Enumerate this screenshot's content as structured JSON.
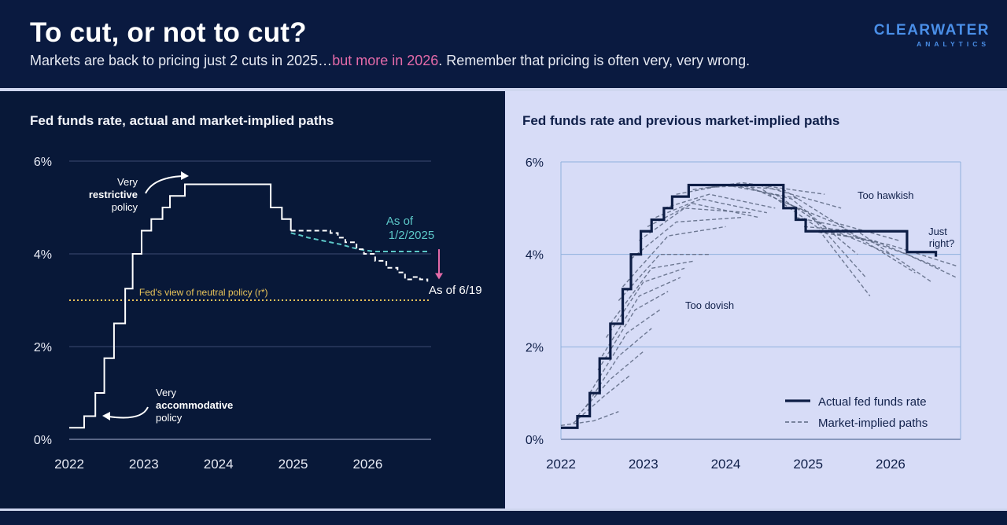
{
  "header": {
    "title": "To cut, or not to cut?",
    "subtitle_pre": "Markets are back to pricing just 2 cuts in 2025…",
    "subtitle_hl": "but more in 2026",
    "subtitle_post": ". Remember that pricing is often very, very wrong.",
    "logo_main": "CLEARWATER",
    "logo_sub": "ANALYTICS"
  },
  "colors": {
    "background": "#0a1a40",
    "highlight": "#e36aa8",
    "logo": "#4a8fe8",
    "left_panel": "#081838",
    "right_panel": "#d7dcf7",
    "actual_left": "#ffffff",
    "path_jan": "#5cc8c8",
    "path_jun": "#ffffff",
    "neutral": "#e8c35a",
    "arrow": "#e36aa8",
    "actual_right": "#0d1d45",
    "implied_right": "#5a6680"
  },
  "chart_data": [
    {
      "type": "line",
      "title": "Fed funds rate, actual and market-implied paths",
      "x_ticks": [
        "2022",
        "2023",
        "2024",
        "2025",
        "2026"
      ],
      "y_ticks": [
        "0%",
        "2%",
        "4%",
        "6%"
      ],
      "xlim": [
        2022,
        2026.85
      ],
      "ylim": [
        0,
        6
      ],
      "grid": true,
      "series": [
        {
          "name": "",
          "style": "step",
          "points": [
            [
              2022.0,
              0.25
            ],
            [
              2022.2,
              0.5
            ],
            [
              2022.35,
              1.0
            ],
            [
              2022.47,
              1.75
            ],
            [
              2022.6,
              2.5
            ],
            [
              2022.75,
              3.25
            ],
            [
              2022.85,
              4.0
            ],
            [
              2022.97,
              4.5
            ],
            [
              2023.1,
              4.75
            ],
            [
              2023.25,
              5.0
            ],
            [
              2023.35,
              5.25
            ],
            [
              2023.55,
              5.5
            ],
            [
              2024.7,
              5.0
            ],
            [
              2024.85,
              4.75
            ],
            [
              2024.97,
              4.5
            ]
          ]
        },
        {
          "name": "As of 1/2/2025",
          "style": "dashed",
          "points": [
            [
              2024.97,
              4.45
            ],
            [
              2025.1,
              4.4
            ],
            [
              2025.2,
              4.35
            ],
            [
              2025.35,
              4.3
            ],
            [
              2025.5,
              4.25
            ],
            [
              2025.65,
              4.2
            ],
            [
              2025.8,
              4.13
            ],
            [
              2025.95,
              4.08
            ],
            [
              2026.1,
              4.05
            ],
            [
              2026.3,
              4.05
            ],
            [
              2026.5,
              4.05
            ],
            [
              2026.8,
              4.05
            ]
          ]
        },
        {
          "name": "As of 6/19",
          "style": "dashed",
          "points": [
            [
              2024.97,
              4.5
            ],
            [
              2025.1,
              4.5
            ],
            [
              2025.3,
              4.5
            ],
            [
              2025.45,
              4.5
            ],
            [
              2025.5,
              4.45
            ],
            [
              2025.6,
              4.35
            ],
            [
              2025.7,
              4.25
            ],
            [
              2025.85,
              4.1
            ],
            [
              2025.95,
              4.0
            ],
            [
              2026.1,
              3.85
            ],
            [
              2026.25,
              3.7
            ],
            [
              2026.4,
              3.6
            ],
            [
              2026.5,
              3.45
            ],
            [
              2026.6,
              3.5
            ],
            [
              2026.7,
              3.45
            ],
            [
              2026.8,
              3.4
            ]
          ]
        },
        {
          "name": "Fed's view of neutral policy (r*)",
          "style": "dotted",
          "points": [
            [
              2022.0,
              3.0
            ],
            [
              2026.85,
              3.0
            ]
          ]
        }
      ],
      "annotations": {
        "restrictive": [
          "Very",
          "restrictive",
          "policy"
        ],
        "accommodative": [
          "Very",
          "accommodative",
          "policy"
        ],
        "as_of_jan": [
          "As of",
          "1/2/2025"
        ],
        "as_of_jun": "As of 6/19",
        "neutral": "Fed's view of neutral policy (r*)"
      }
    },
    {
      "type": "line",
      "title": "Fed funds rate and previous market-implied paths",
      "x_ticks": [
        "2022",
        "2023",
        "2024",
        "2025",
        "2026"
      ],
      "y_ticks": [
        "0%",
        "2%",
        "4%",
        "6%"
      ],
      "xlim": [
        2022,
        2026.85
      ],
      "ylim": [
        0,
        6
      ],
      "grid": true,
      "legend": {
        "position": "bottom-right",
        "items": [
          "Actual fed funds rate",
          "Market-implied paths"
        ]
      },
      "actual": [
        [
          2022.0,
          0.25
        ],
        [
          2022.2,
          0.5
        ],
        [
          2022.35,
          1.0
        ],
        [
          2022.47,
          1.75
        ],
        [
          2022.6,
          2.5
        ],
        [
          2022.75,
          3.25
        ],
        [
          2022.85,
          4.0
        ],
        [
          2022.97,
          4.5
        ],
        [
          2023.1,
          4.75
        ],
        [
          2023.25,
          5.0
        ],
        [
          2023.35,
          5.25
        ],
        [
          2023.55,
          5.5
        ],
        [
          2024.7,
          5.0
        ],
        [
          2024.85,
          4.75
        ],
        [
          2024.97,
          4.5
        ],
        [
          2025.5,
          4.5
        ],
        [
          2026.2,
          4.05
        ],
        [
          2026.55,
          3.95
        ]
      ],
      "implied_paths": [
        [
          [
            2022.0,
            0.3
          ],
          [
            2022.4,
            0.4
          ],
          [
            2022.7,
            0.6
          ]
        ],
        [
          [
            2022.15,
            0.35
          ],
          [
            2022.5,
            0.9
          ],
          [
            2022.85,
            1.4
          ]
        ],
        [
          [
            2022.2,
            0.5
          ],
          [
            2022.6,
            1.3
          ],
          [
            2023.0,
            1.9
          ]
        ],
        [
          [
            2022.3,
            0.7
          ],
          [
            2022.7,
            1.8
          ],
          [
            2023.1,
            2.4
          ]
        ],
        [
          [
            2022.35,
            1.0
          ],
          [
            2022.8,
            2.3
          ],
          [
            2023.2,
            2.8
          ]
        ],
        [
          [
            2022.45,
            1.5
          ],
          [
            2022.9,
            2.8
          ],
          [
            2023.3,
            3.2
          ]
        ],
        [
          [
            2022.5,
            1.8
          ],
          [
            2022.95,
            3.1
          ],
          [
            2023.45,
            3.5
          ]
        ],
        [
          [
            2022.55,
            2.2
          ],
          [
            2023.0,
            3.4
          ],
          [
            2023.5,
            3.7
          ]
        ],
        [
          [
            2022.6,
            2.5
          ],
          [
            2023.1,
            3.7
          ],
          [
            2023.6,
            3.85
          ]
        ],
        [
          [
            2022.7,
            3.0
          ],
          [
            2023.2,
            4.0
          ],
          [
            2023.8,
            4.0
          ]
        ],
        [
          [
            2022.75,
            3.3
          ],
          [
            2023.3,
            4.4
          ],
          [
            2024.0,
            4.6
          ]
        ],
        [
          [
            2022.85,
            3.9
          ],
          [
            2023.4,
            4.7
          ],
          [
            2024.2,
            4.8
          ]
        ],
        [
          [
            2022.95,
            4.3
          ],
          [
            2023.5,
            5.0
          ],
          [
            2024.3,
            4.9
          ]
        ],
        [
          [
            2023.05,
            4.6
          ],
          [
            2023.6,
            5.1
          ],
          [
            2024.4,
            4.8
          ]
        ],
        [
          [
            2023.15,
            4.8
          ],
          [
            2023.7,
            5.2
          ],
          [
            2024.5,
            4.9
          ]
        ],
        [
          [
            2023.25,
            5.0
          ],
          [
            2023.8,
            5.3
          ],
          [
            2024.6,
            5.0
          ]
        ],
        [
          [
            2023.4,
            5.3
          ],
          [
            2024.0,
            5.5
          ],
          [
            2024.9,
            5.2
          ]
        ],
        [
          [
            2023.6,
            5.4
          ],
          [
            2024.2,
            5.55
          ],
          [
            2025.2,
            5.3
          ]
        ],
        [
          [
            2023.8,
            5.45
          ],
          [
            2024.4,
            5.5
          ],
          [
            2025.4,
            5.0
          ]
        ],
        [
          [
            2024.0,
            5.5
          ],
          [
            2024.7,
            5.4
          ],
          [
            2025.5,
            4.5
          ]
        ],
        [
          [
            2024.1,
            5.5
          ],
          [
            2024.8,
            5.2
          ],
          [
            2025.6,
            4.0
          ]
        ],
        [
          [
            2024.3,
            5.45
          ],
          [
            2025.0,
            4.9
          ],
          [
            2025.7,
            3.5
          ]
        ],
        [
          [
            2024.45,
            5.4
          ],
          [
            2025.1,
            4.6
          ],
          [
            2025.75,
            3.1
          ]
        ],
        [
          [
            2024.6,
            5.3
          ],
          [
            2025.2,
            4.6
          ],
          [
            2026.0,
            4.0
          ]
        ],
        [
          [
            2024.75,
            5.1
          ],
          [
            2025.3,
            4.7
          ],
          [
            2026.1,
            4.3
          ]
        ],
        [
          [
            2024.85,
            4.8
          ],
          [
            2025.4,
            4.6
          ],
          [
            2026.3,
            3.6
          ]
        ],
        [
          [
            2024.95,
            4.6
          ],
          [
            2025.6,
            4.5
          ],
          [
            2026.5,
            3.4
          ]
        ],
        [
          [
            2025.05,
            4.5
          ],
          [
            2025.8,
            4.3
          ],
          [
            2026.6,
            3.7
          ]
        ],
        [
          [
            2025.2,
            4.5
          ],
          [
            2026.0,
            4.2
          ],
          [
            2026.8,
            3.75
          ]
        ],
        [
          [
            2025.4,
            4.5
          ],
          [
            2026.2,
            4.0
          ],
          [
            2026.8,
            3.5
          ]
        ]
      ],
      "annotations": {
        "too_hawkish": "Too hawkish",
        "just_right": [
          "Just",
          "right?"
        ],
        "too_dovish": "Too dovish"
      }
    }
  ]
}
